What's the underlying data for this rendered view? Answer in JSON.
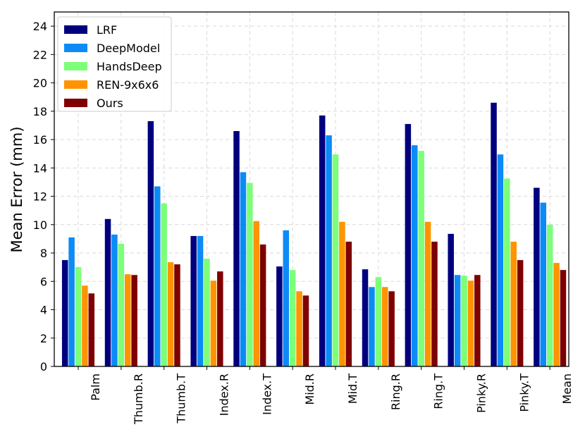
{
  "chart_data": {
    "type": "bar",
    "title": "",
    "xlabel": "",
    "ylabel": "Mean Error (mm)",
    "ylim": [
      0,
      25
    ],
    "yticks": [
      0,
      2,
      4,
      6,
      8,
      10,
      12,
      14,
      16,
      18,
      20,
      22,
      24
    ],
    "grid": true,
    "legend_position": "top-left",
    "categories": [
      "Palm",
      "Thumb.R",
      "Thumb.T",
      "Index.R",
      "Index.T",
      "Mid.R",
      "Mid.T",
      "Ring.R",
      "Ring.T",
      "Pinky.R",
      "Pinky.T",
      "Mean"
    ],
    "series": [
      {
        "name": "LRF",
        "color": "#00007f",
        "values": [
          7.5,
          10.4,
          17.3,
          9.2,
          16.6,
          7.05,
          17.7,
          6.85,
          17.1,
          9.35,
          18.6,
          12.6
        ]
      },
      {
        "name": "DeepModel",
        "color": "#0c8bf6",
        "values": [
          9.1,
          9.3,
          12.7,
          9.2,
          13.7,
          9.6,
          16.3,
          5.6,
          15.6,
          6.45,
          14.95,
          11.55
        ]
      },
      {
        "name": "HandsDeep",
        "color": "#7cff79",
        "values": [
          7.0,
          8.65,
          11.5,
          7.6,
          12.95,
          6.8,
          14.95,
          6.3,
          15.2,
          6.4,
          13.25,
          10.0
        ]
      },
      {
        "name": "REN-9x6x6",
        "color": "#ff9400",
        "values": [
          5.7,
          6.5,
          7.35,
          6.05,
          10.25,
          5.3,
          10.2,
          5.6,
          10.2,
          6.05,
          8.8,
          7.3
        ]
      },
      {
        "name": "Ours",
        "color": "#7f0000",
        "values": [
          5.15,
          6.45,
          7.2,
          6.7,
          8.6,
          5.0,
          8.8,
          5.3,
          8.8,
          6.45,
          7.5,
          6.8
        ]
      }
    ]
  }
}
